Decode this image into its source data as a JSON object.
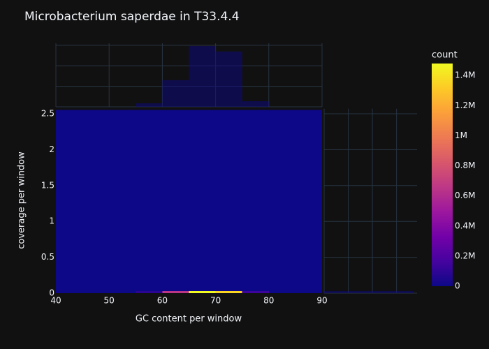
{
  "chart_data": {
    "type": "heatmap",
    "title": "Microbacterium saperdae in T33.4.4",
    "xlabel": "GC content per window",
    "ylabel": "coverage per window",
    "x_bins": [
      40,
      45,
      50,
      55,
      60,
      65,
      70,
      75,
      80,
      85,
      90
    ],
    "y_bins": [
      0,
      0.03,
      2.555
    ],
    "z": [
      [
        0,
        0,
        0,
        85000,
        650000,
        1480000,
        1350000,
        136000,
        0,
        0
      ],
      [
        0,
        0,
        0,
        0,
        0,
        0,
        0,
        0,
        0,
        0
      ]
    ],
    "xlim": [
      40,
      90
    ],
    "xticks": [
      40,
      50,
      60,
      70,
      80,
      90
    ],
    "ylim": [
      0,
      2.57
    ],
    "yticks": [
      0,
      0.5,
      1,
      1.5,
      2,
      2.5
    ],
    "grid": true,
    "colorscale": [
      "#0d0887",
      "#46039f",
      "#7201a8",
      "#9c179e",
      "#bd3786",
      "#d8576b",
      "#ed7953",
      "#fb9f3a",
      "#fdca26",
      "#f0f921"
    ],
    "colorbar": {
      "title": "count",
      "lim": [
        0,
        1480000
      ],
      "ticks": [
        0,
        {
          "value": 200000,
          "label": "0.2M"
        },
        {
          "value": 400000,
          "label": "0.4M"
        },
        {
          "value": 600000,
          "label": "0.6M"
        },
        {
          "value": 800000,
          "label": "0.8M"
        },
        {
          "value": 1000000,
          "label": "1M"
        },
        {
          "value": 1200000,
          "label": "1.2M"
        },
        {
          "value": 1400000,
          "label": "1.4M"
        }
      ]
    },
    "top_histogram": {
      "values": [
        0,
        0,
        0,
        85000,
        650000,
        1480000,
        1350000,
        136000,
        0,
        0
      ],
      "color": "#0d0887",
      "opacity": 0.5,
      "ylim": [
        0,
        1550000
      ],
      "yticks": [
        0,
        500000,
        1000000,
        1500000
      ]
    },
    "right_histogram": {
      "values": [
        3701000,
        0
      ],
      "color": "#0d0887",
      "opacity": 0.5,
      "xlim": [
        0,
        3850000
      ],
      "xticks": [
        0,
        1000000,
        2000000,
        3000000
      ]
    }
  }
}
